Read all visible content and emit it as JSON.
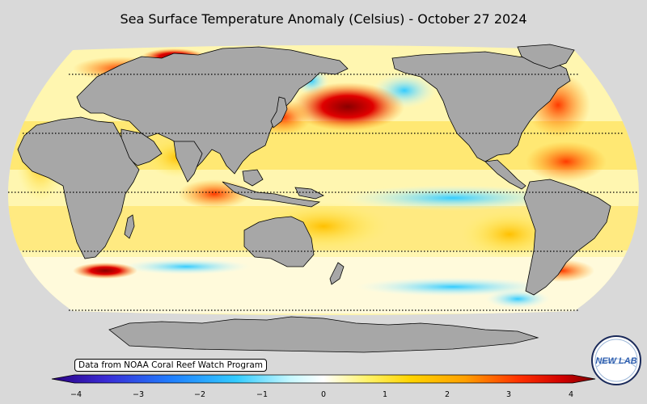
{
  "map": {
    "title": "Sea Surface Temperature Anomaly (Celsius) - October 27 2024",
    "credit": "Data from NOAA Coral Reef Watch Program",
    "projection": "Robinson",
    "colorbar": {
      "min": -4,
      "max": 4,
      "ticks": [
        "−4",
        "−3",
        "−2",
        "−1",
        "0",
        "1",
        "2",
        "3",
        "4"
      ],
      "colors": [
        "#2a0080",
        "#3a2bd6",
        "#1f7fff",
        "#33ccff",
        "#a8f2ff",
        "#ffffff",
        "#fff36a",
        "#ffd400",
        "#ffa000",
        "#ff5a00",
        "#e00000",
        "#8a0000"
      ]
    },
    "logo_text": "NEW LAB",
    "land_color": "#a7a7a7"
  }
}
